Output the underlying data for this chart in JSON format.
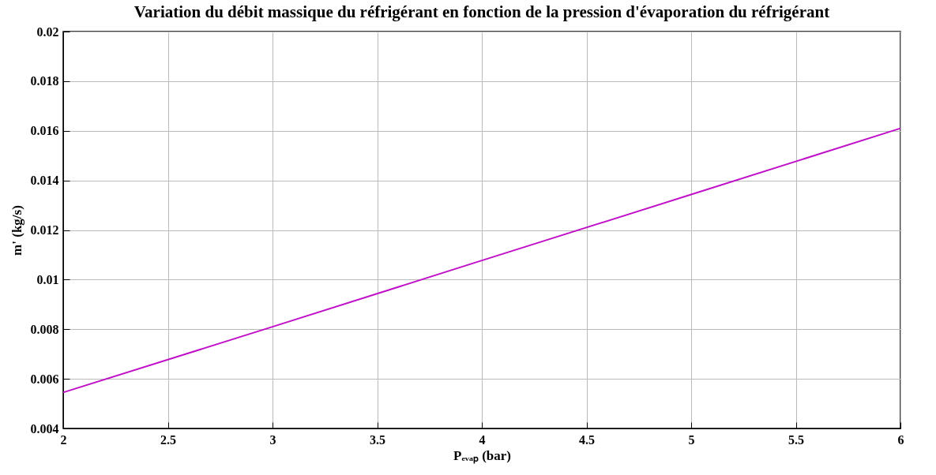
{
  "chart_data": {
    "type": "line",
    "title": "Variation du débit massique du réfrigérant en fonction de la pression d'évaporation du réfrigérant",
    "xlabel": "Pₑᵥₐₚ (bar)",
    "ylabel": "m' (kg/s)",
    "x": [
      2,
      3,
      4,
      5,
      6
    ],
    "series": [
      {
        "color": "#c010c8",
        "values": [
          0.00545,
          0.0081,
          0.01077,
          0.01343,
          0.0161
        ]
      }
    ],
    "xlim": [
      2,
      6
    ],
    "xticks": [
      2,
      2.5,
      3,
      3.5,
      4,
      4.5,
      5,
      5.5,
      6
    ],
    "ylim": [
      0.004,
      0.02
    ],
    "yticks": [
      0.004,
      0.006,
      0.008,
      0.01,
      0.012,
      0.014,
      0.016,
      0.018,
      0.02
    ],
    "grid": true,
    "legend": false,
    "marker": "none",
    "line_style": "solid"
  }
}
